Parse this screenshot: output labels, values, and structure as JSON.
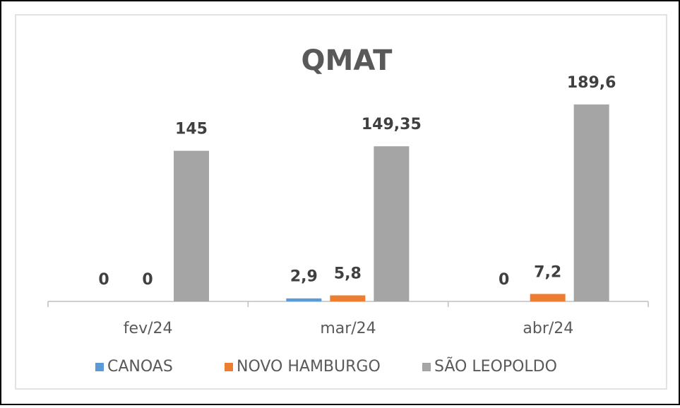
{
  "chart_data": {
    "type": "bar",
    "title": "QMAT",
    "categories": [
      "fev/24",
      "mar/24",
      "abr/24"
    ],
    "series": [
      {
        "name": "CANOAS",
        "color": "#5b9bd5",
        "values": [
          0,
          2.9,
          0
        ],
        "value_labels": [
          "0",
          "2,9",
          "0"
        ]
      },
      {
        "name": "NOVO HAMBURGO",
        "color": "#ed7d31",
        "values": [
          0,
          5.8,
          7.2
        ],
        "value_labels": [
          "0",
          "5,8",
          "7,2"
        ]
      },
      {
        "name": "SÃO LEOPOLDO",
        "color": "#a5a5a5",
        "values": [
          145,
          149.35,
          189.6
        ],
        "value_labels": [
          "145",
          "149,35",
          "189,6"
        ]
      }
    ]
  }
}
